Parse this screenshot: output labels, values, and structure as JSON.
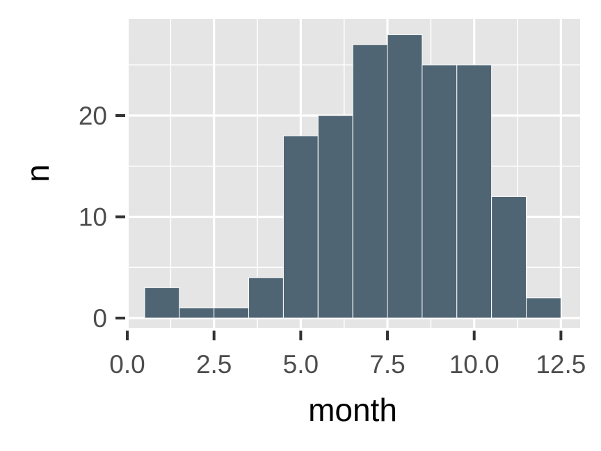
{
  "chart_data": {
    "type": "bar",
    "xlabel": "month",
    "ylabel": "n",
    "x": [
      1,
      2,
      3,
      4,
      5,
      6,
      7,
      8,
      9,
      10,
      11,
      12
    ],
    "values": [
      3,
      1,
      1,
      4,
      18,
      20,
      27,
      28,
      25,
      25,
      12,
      2
    ],
    "bar_width": 1,
    "xlim": [
      0,
      12.5
    ],
    "ylim": [
      0,
      30
    ],
    "x_ticks": [
      0.0,
      2.5,
      5.0,
      7.5,
      10.0,
      12.5
    ],
    "x_tick_labels": [
      "0.0",
      "2.5",
      "5.0",
      "7.5",
      "10.0",
      "12.5"
    ],
    "y_ticks": [
      0,
      10,
      20
    ],
    "y_tick_labels": [
      "0",
      "10",
      "20"
    ],
    "grid": true,
    "colors": {
      "bar_fill": "#4f6574",
      "bar_outline": "#ffffff",
      "panel_background": "#e5e5e5",
      "grid_line": "#ffffff",
      "tick_mark": "#333333",
      "tick_label": "#4d4d4d"
    }
  }
}
